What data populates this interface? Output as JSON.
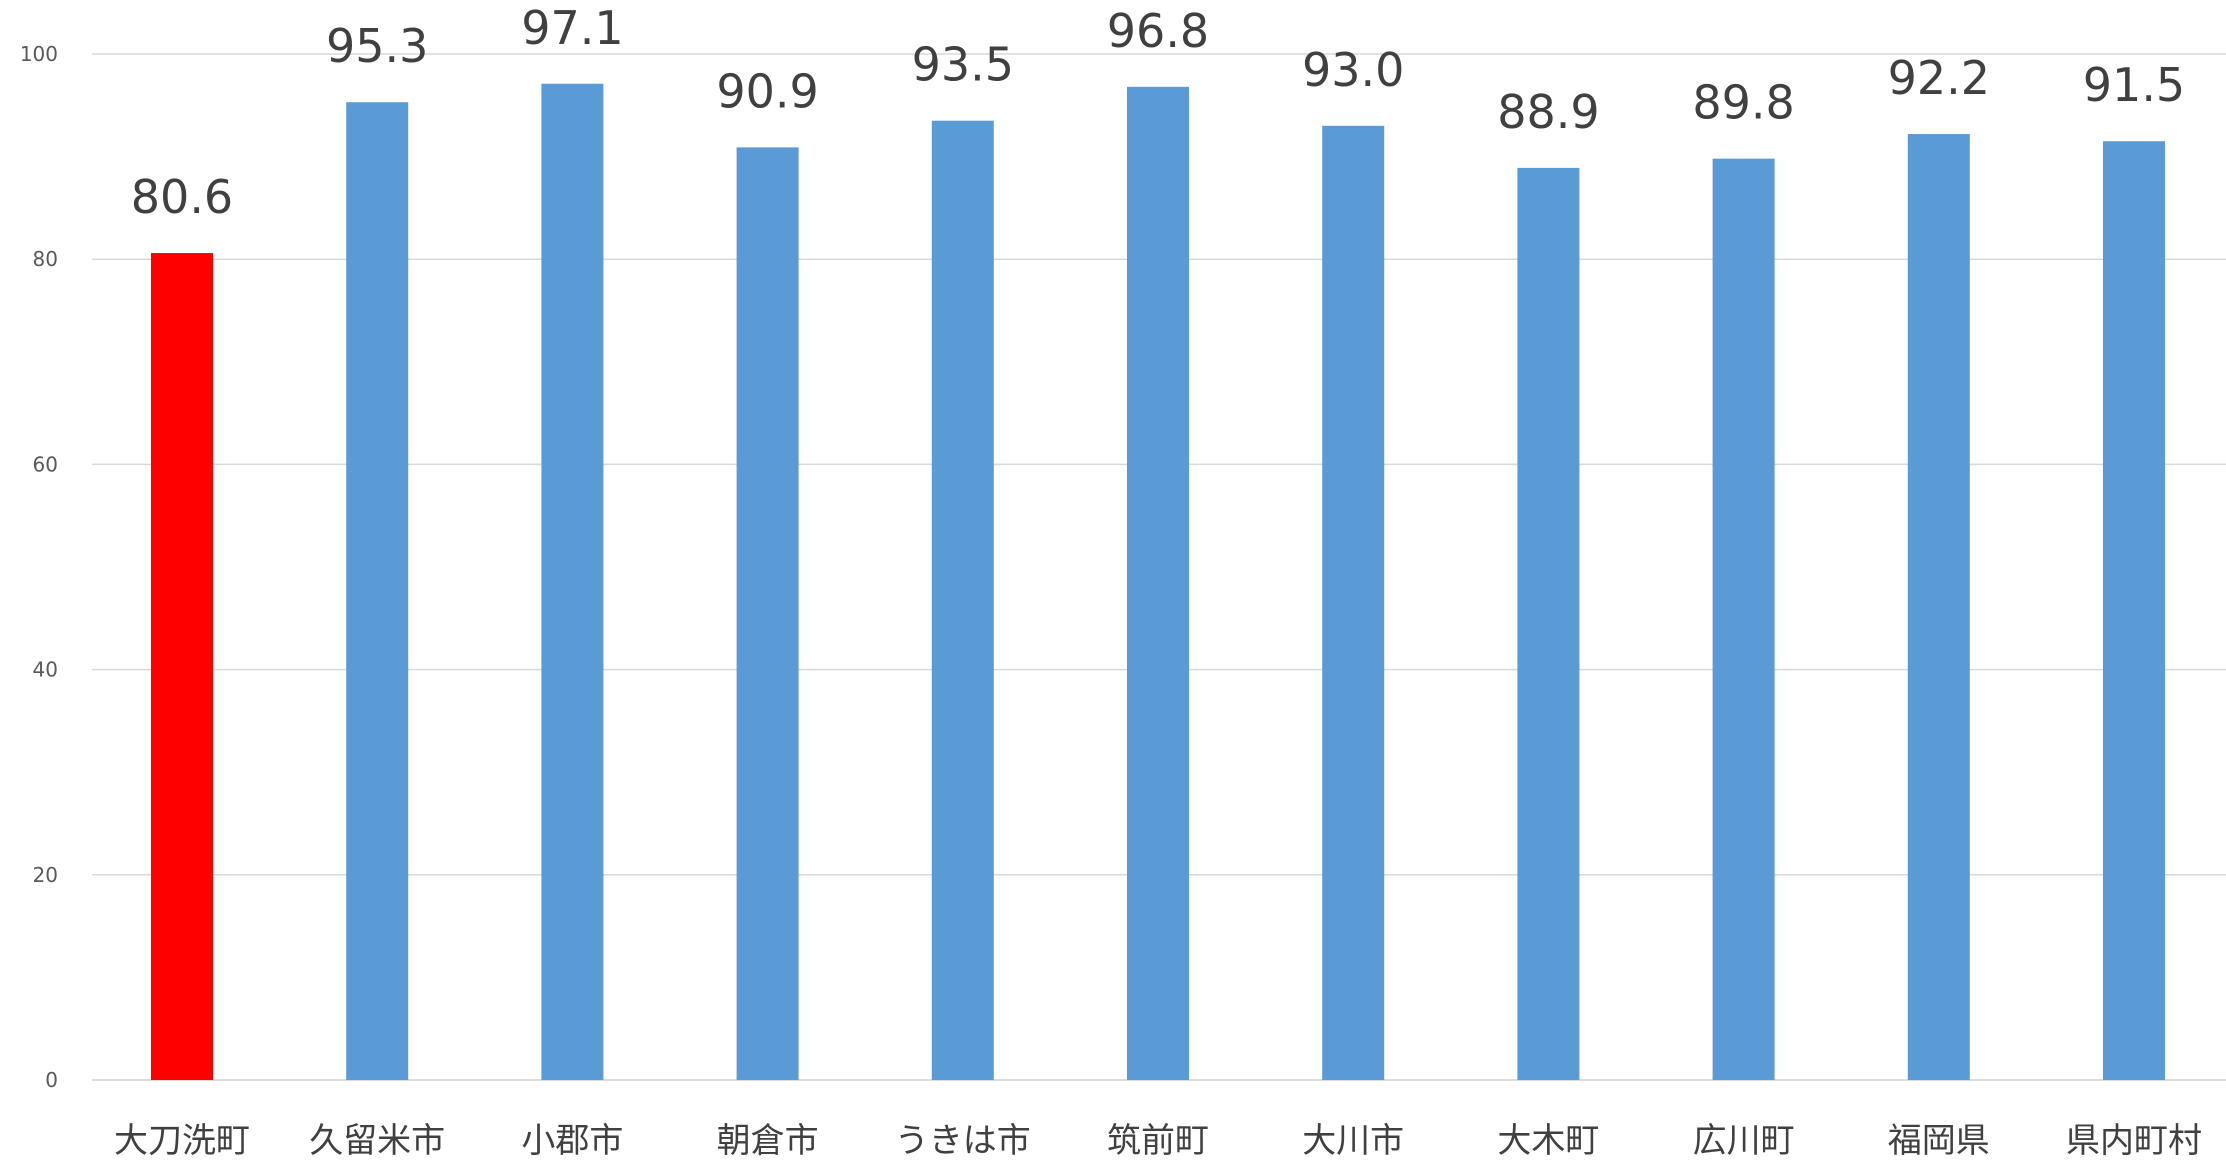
{
  "chart_data": {
    "type": "bar",
    "categories": [
      "大刀洗町",
      "久留米市",
      "小郡市",
      "朝倉市",
      "うきは市",
      "筑前町",
      "大川市",
      "大木町",
      "広川町",
      "福岡県",
      "県内町村"
    ],
    "values": [
      80.6,
      95.3,
      97.1,
      90.9,
      93.5,
      96.8,
      93.0,
      88.9,
      89.8,
      92.2,
      91.5
    ],
    "value_labels": [
      "80.6",
      "95.3",
      "97.1",
      "90.9",
      "93.5",
      "96.8",
      "93.0",
      "88.9",
      "89.8",
      "92.2",
      "91.5"
    ],
    "y_ticks": [
      "0",
      "20",
      "40",
      "60",
      "80",
      "100"
    ],
    "ylim": [
      0,
      100
    ],
    "title": "",
    "xlabel": "",
    "ylabel": "",
    "grid": true,
    "legend": "none",
    "colors": {
      "highlight": "#ff0000",
      "default": "#5b9bd5",
      "highlight_index": 0
    }
  }
}
